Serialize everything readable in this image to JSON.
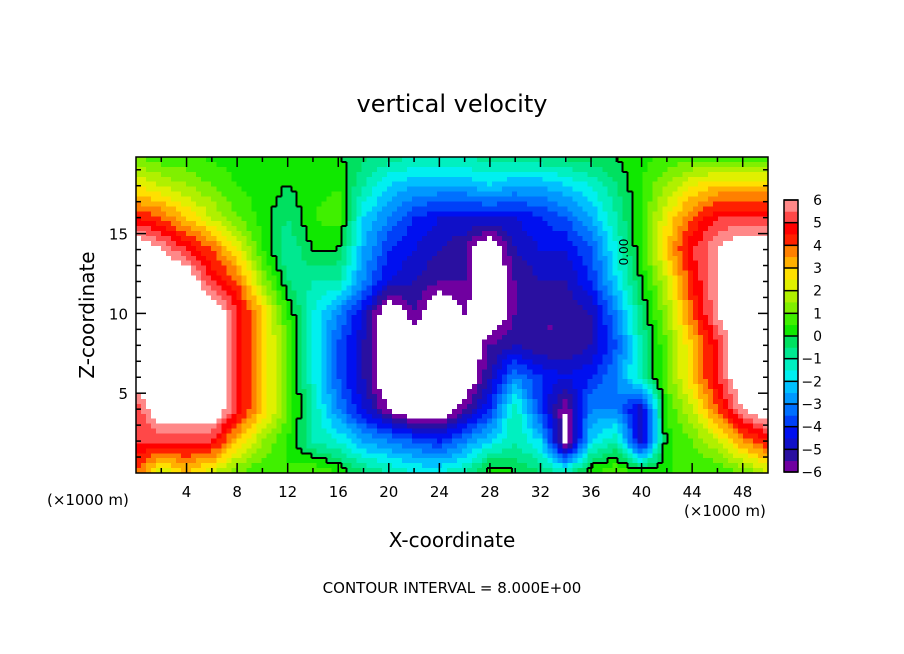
{
  "chart_data": {
    "type": "heatmap",
    "title": "vertical velocity",
    "xlabel": "X-coordinate",
    "ylabel": "Z-coordinate",
    "x_unit_label_left": "(×1000 m)",
    "x_unit_label_right": "(×1000 m)",
    "footer": "CONTOUR INTERVAL = 8.000E+00",
    "contour_label": "0.00",
    "xlim": [
      0,
      50
    ],
    "ylim": [
      0,
      19.8
    ],
    "xticks": [
      4,
      8,
      12,
      16,
      20,
      24,
      28,
      32,
      36,
      40,
      44,
      48
    ],
    "yticks": [
      5,
      10,
      15
    ],
    "colorbar": {
      "range": [
        -6,
        6
      ],
      "ticks": [
        "6",
        "5",
        "4",
        "3",
        "2",
        "1",
        "0",
        "−1",
        "−2",
        "−3",
        "−4",
        "−5",
        "−6"
      ],
      "colors": [
        "#7000a0",
        "#2a10a0",
        "#1010c8",
        "#0010f0",
        "#0040f8",
        "#0070ff",
        "#0098ff",
        "#00c0ff",
        "#00f0f0",
        "#00f0c0",
        "#00e890",
        "#00e060",
        "#10e800",
        "#40f000",
        "#80f000",
        "#b0f000",
        "#e0f000",
        "#ffe000",
        "#ffb000",
        "#ff8000",
        "#ff2000",
        "#ff0000",
        "#ff4848",
        "#ff8888"
      ]
    },
    "grid_x": [
      0,
      2,
      4,
      6,
      8,
      10,
      12,
      14,
      16,
      18,
      20,
      22,
      24,
      26,
      28,
      30,
      32,
      34,
      36,
      38,
      40,
      42,
      44,
      46,
      48,
      50
    ],
    "grid_z": [
      20,
      18,
      16,
      14,
      12,
      10,
      8,
      6,
      4,
      2,
      0
    ],
    "values": [
      [
        0.8,
        0.5,
        0.5,
        0.3,
        0.2,
        0.2,
        0.1,
        0.1,
        0,
        -0.3,
        -0.6,
        -0.8,
        -0.8,
        -0.8,
        -0.6,
        -0.5,
        -0.3,
        -0.2,
        0,
        0.1,
        0.3,
        0.5,
        0.6,
        0.5,
        0.5,
        0.5
      ],
      [
        2.5,
        2,
        1.5,
        1,
        0.5,
        0.3,
        0,
        0.3,
        0.5,
        -1,
        -2,
        -2.5,
        -2.5,
        -2.5,
        -2,
        -2.5,
        -2.5,
        -2,
        -1.5,
        -0.5,
        0.5,
        1.5,
        2.5,
        3,
        3,
        3
      ],
      [
        4.5,
        4,
        3,
        2,
        1,
        0.3,
        -0.5,
        0.5,
        0.8,
        -2,
        -3,
        -4,
        -4.5,
        -4.5,
        -4.5,
        -4.5,
        -4,
        -3.5,
        -2.5,
        -1,
        0.5,
        2.5,
        4,
        5,
        5,
        5
      ],
      [
        7,
        6,
        5,
        4,
        2.5,
        0.5,
        -1,
        0,
        0,
        -2.5,
        -4,
        -4.5,
        -5,
        -5.5,
        -7,
        -5,
        -4.5,
        -4.5,
        -3.5,
        -1.5,
        0.5,
        3,
        5,
        6,
        7,
        7
      ],
      [
        7,
        7,
        7,
        5,
        4,
        1.5,
        -0.5,
        -1,
        -1,
        -3,
        -4.5,
        -5,
        -5.5,
        -5.5,
        -7,
        -5.5,
        -5,
        -5,
        -4,
        -2,
        0,
        2,
        4.5,
        6,
        7,
        7
      ],
      [
        7,
        7,
        7,
        7,
        5,
        3,
        0.5,
        -1.5,
        -3,
        -4.5,
        -7,
        -5.5,
        -7,
        -6,
        -7,
        -5.5,
        -5.5,
        -5.5,
        -5,
        -3,
        -0.5,
        1.5,
        4,
        6,
        7,
        7
      ],
      [
        7,
        7,
        7,
        7,
        5,
        3,
        1,
        -1.5,
        -3.5,
        -5,
        -7,
        -7,
        -7,
        -7,
        -5.5,
        -5,
        -5.5,
        -5.5,
        -5,
        -3.5,
        -1,
        1,
        3,
        5,
        7,
        7
      ],
      [
        7,
        7,
        7,
        7,
        5,
        3,
        1,
        -1.5,
        -3.5,
        -5,
        -7,
        -7,
        -7,
        -7,
        -5,
        -3,
        -4,
        -4.5,
        -4,
        -3,
        -1,
        1,
        3,
        5,
        7,
        7
      ],
      [
        5,
        7,
        7,
        7,
        5,
        3,
        1,
        -1,
        -3,
        -4.5,
        -6,
        -7,
        -7,
        -5.5,
        -4,
        -1,
        -4,
        -6,
        -3,
        -3,
        -5,
        0.5,
        2,
        4,
        6,
        7
      ],
      [
        5,
        5,
        5,
        5,
        3,
        1.5,
        0.5,
        -1,
        -1.5,
        -2.5,
        -3,
        -3.5,
        -4,
        -3,
        -2,
        -1,
        -2,
        -6.5,
        -2,
        -1,
        -5,
        0.3,
        1,
        2,
        3.5,
        4.5
      ],
      [
        4,
        2,
        3,
        2,
        1,
        0.5,
        0.5,
        1,
        0.5,
        -0.5,
        -1,
        -1.5,
        -1.5,
        -1,
        0.5,
        0,
        -0.5,
        -1,
        0.5,
        1,
        0.5,
        0.5,
        0.5,
        0.5,
        1,
        2
      ]
    ]
  }
}
